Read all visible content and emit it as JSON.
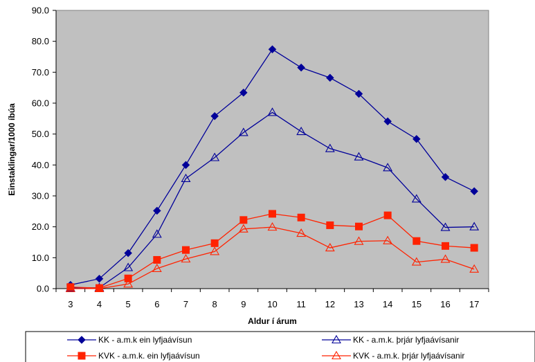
{
  "chart_data": {
    "type": "line",
    "title": "",
    "xlabel": "Aldur í árum",
    "ylabel": "Einstaklingar/1000 íbúa",
    "x": [
      3,
      4,
      5,
      6,
      7,
      8,
      9,
      10,
      11,
      12,
      13,
      14,
      15,
      16,
      17
    ],
    "ylim": [
      0,
      90
    ],
    "yticks": [
      0,
      10,
      20,
      30,
      40,
      50,
      60,
      70,
      80,
      90
    ],
    "ytick_labels": [
      "0.0",
      "10.0",
      "20.0",
      "30.0",
      "40.0",
      "50.0",
      "60.0",
      "70.0",
      "80.0",
      "90.0"
    ],
    "grid": false,
    "plot_background": "#c0c0c0",
    "legend_position": "bottom",
    "series": [
      {
        "name": "KK - a.m.k ein lyfjaávísun",
        "color": "#000099",
        "marker": "filled-diamond",
        "values": [
          1.2,
          3.2,
          11.5,
          25.2,
          40.0,
          55.8,
          63.4,
          77.4,
          71.5,
          68.2,
          63.0,
          54.1,
          48.4,
          36.1,
          31.5
        ]
      },
      {
        "name": "KK - a.m.k. þrjár lyfjaávísanir",
        "color": "#000099",
        "marker": "hollow-triangle",
        "values": [
          0.2,
          0.3,
          6.8,
          17.6,
          35.6,
          42.4,
          50.5,
          57.0,
          50.8,
          45.3,
          42.6,
          39.1,
          29.0,
          19.8,
          20.0
        ]
      },
      {
        "name": "KVK - a.m.k. ein lyfjaávísun",
        "color": "#ff2200",
        "marker": "filled-square",
        "values": [
          0.5,
          0.2,
          3.3,
          9.3,
          12.5,
          14.7,
          22.2,
          24.2,
          23.0,
          20.5,
          20.1,
          23.7,
          15.4,
          13.8,
          13.2
        ]
      },
      {
        "name": "KVK - a.m.k. þrjár lyfjaávísanir",
        "color": "#ff2200",
        "marker": "hollow-triangle",
        "values": [
          0.0,
          0.0,
          1.5,
          6.5,
          9.6,
          12.0,
          19.3,
          19.9,
          17.9,
          13.2,
          15.3,
          15.5,
          8.6,
          9.5,
          6.3
        ]
      }
    ]
  }
}
